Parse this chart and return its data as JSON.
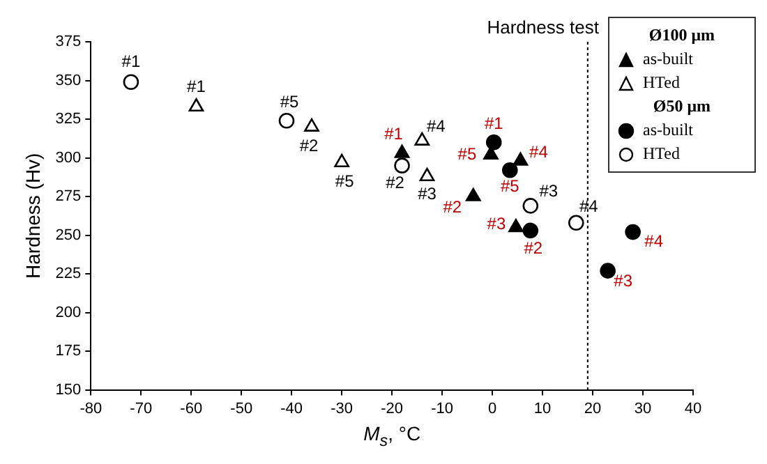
{
  "chart_data": {
    "type": "scatter",
    "xlabel": "M$_{s}$, °C",
    "ylabel": "Hardness (Hv)",
    "xlim": [
      -80,
      40
    ],
    "xticks": [
      -80,
      -70,
      -60,
      -50,
      -40,
      -30,
      -20,
      -10,
      0,
      10,
      20,
      30,
      40
    ],
    "ylim": [
      150,
      375
    ],
    "yticks": [
      150,
      175,
      200,
      225,
      250,
      275,
      300,
      325,
      350,
      375
    ],
    "grid": false,
    "legend": "top right",
    "annotations": [
      "Ø100 μm",
      "Ø50 μm",
      {
        "text": "#1",
        "x": -18,
        "y": 303
      },
      {
        "text": "#5",
        "x": -0.3,
        "y": 302
      },
      {
        "text": "#4",
        "x": 5.6,
        "y": 298
      },
      {
        "text": "#2",
        "x": -3.8,
        "y": 275
      },
      {
        "text": "#3",
        "x": 4.7,
        "y": 255
      },
      {
        "text": "#1",
        "x": -59,
        "y": 333
      },
      {
        "text": "#2",
        "x": -36,
        "y": 320
      },
      {
        "text": "#5",
        "x": -30,
        "y": 297
      },
      {
        "text": "#4",
        "x": -14,
        "y": 311
      },
      {
        "text": "#3",
        "x": -13,
        "y": 288
      },
      {
        "text": "#1",
        "x": 0.3,
        "y": 310
      },
      {
        "text": "#5",
        "x": 3.5,
        "y": 292
      },
      {
        "text": "#2",
        "x": 7.6,
        "y": 253
      },
      {
        "text": "#4",
        "x": 28,
        "y": 252
      },
      {
        "text": "#3",
        "x": 23,
        "y": 227
      },
      {
        "text": "#1",
        "x": -72,
        "y": 349
      },
      {
        "text": "#5",
        "x": -41,
        "y": 324
      },
      {
        "text": "#2",
        "x": -18,
        "y": 295
      },
      {
        "text": "#3",
        "x": 7.6,
        "y": 269
      },
      {
        "text": "#4",
        "x": 16.7,
        "y": 258
      }
    ],
    "ref_lines": [
      {
        "axis": "x",
        "value": 19,
        "label": "Hardness test",
        "line_style": "dotted",
        "color": "#000000"
      }
    ],
    "series": [
      {
        "name": "as-built",
        "color": "#000000",
        "marker": "triangle",
        "x": [
          -18,
          -0.3,
          5.6,
          -3.8,
          4.7
        ],
        "values": [
          303,
          302,
          298,
          275,
          255
        ]
      },
      {
        "name": "HTed",
        "color": "#000000",
        "marker": "triangle",
        "x": [
          -59,
          -36,
          -30,
          -14,
          -13
        ],
        "values": [
          333,
          320,
          297,
          311,
          288
        ]
      },
      {
        "name": "as-built",
        "color": "#000000",
        "marker": "circle",
        "x": [
          0.3,
          3.5,
          7.6,
          28,
          23
        ],
        "values": [
          310,
          292,
          253,
          252,
          227
        ]
      },
      {
        "name": "HTed",
        "color": "#000000",
        "marker": "circle",
        "x": [
          -72,
          -41,
          -18,
          7.6,
          16.7
        ],
        "values": [
          349,
          324,
          295,
          269,
          258
        ]
      }
    ]
  }
}
